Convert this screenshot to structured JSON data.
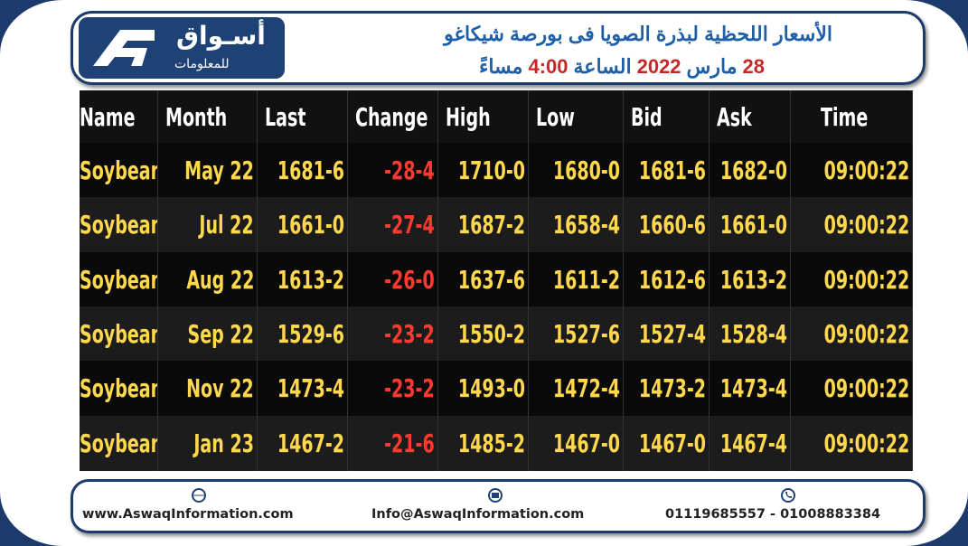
{
  "header": {
    "brand_name": "أسـواق",
    "brand_sub": "للمعلومات",
    "title": "الأسعار اللحظية لبذرة الصويا فى بورصة شيكاغو",
    "subtitle_parts": [
      "28",
      "مارس",
      "2022",
      "الساعة",
      "4:00",
      "مساءً"
    ]
  },
  "table": {
    "columns": [
      "Name",
      "Month",
      "Last",
      "Change",
      "High",
      "Low",
      "Bid",
      "Ask",
      "Time"
    ],
    "rows": [
      [
        "Soybean",
        "May 22",
        "1681-6",
        "-28-4",
        "1710-0",
        "1680-0",
        "1681-6",
        "1682-0",
        "09:00:22"
      ],
      [
        "Soybean",
        "Jul 22",
        "1661-0",
        "-27-4",
        "1687-2",
        "1658-4",
        "1660-6",
        "1661-0",
        "09:00:22"
      ],
      [
        "Soybean",
        "Aug 22",
        "1613-2",
        "-26-0",
        "1637-6",
        "1611-2",
        "1612-6",
        "1613-2",
        "09:00:22"
      ],
      [
        "Soybean",
        "Sep 22",
        "1529-6",
        "-23-2",
        "1550-2",
        "1527-6",
        "1527-4",
        "1528-4",
        "09:00:22"
      ],
      [
        "Soybean",
        "Nov 22",
        "1473-4",
        "-23-2",
        "1493-0",
        "1472-4",
        "1473-2",
        "1473-4",
        "09:00:22"
      ],
      [
        "Soybean",
        "Jan 23",
        "1467-2",
        "-21-6",
        "1485-2",
        "1467-0",
        "1467-0",
        "1467-4",
        "09:00:22"
      ]
    ]
  },
  "footer": {
    "website": "www.AswaqInformation.com",
    "email": "Info@AswaqInformation.com",
    "phone": "01119685557 - 01008883384"
  }
}
